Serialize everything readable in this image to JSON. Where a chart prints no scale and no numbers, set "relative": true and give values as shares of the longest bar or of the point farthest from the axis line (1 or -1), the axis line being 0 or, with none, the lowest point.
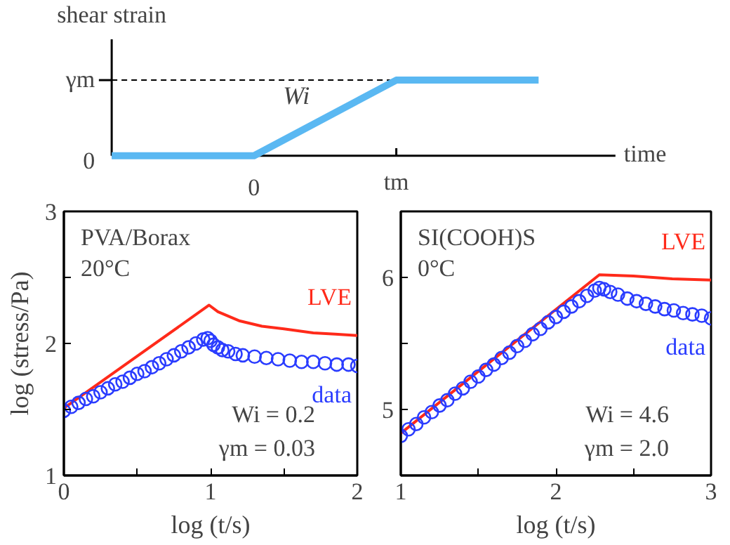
{
  "chart_data": [
    {
      "type": "line",
      "relative": true,
      "xlabel": "time",
      "ylabel": "shear strain",
      "categories": [
        null,
        "0",
        "tm",
        null
      ],
      "series": [
        {
          "color": "#5ab8f2",
          "values": [
            0,
            0,
            1,
            1
          ]
        }
      ],
      "ref_lines": [
        {
          "axis": "y",
          "value": 1,
          "line_style": "dashed",
          "color": "#000000"
        }
      ],
      "annotations": [
        "Wi",
        "0",
        "γm"
      ]
    },
    {
      "type": "line",
      "xlabel": "log (t/s)",
      "ylabel": "log (stress/Pa)",
      "xlim": [
        0,
        2
      ],
      "ylim": [
        1,
        3
      ],
      "xticks": [
        0,
        {
          "value": 0.5,
          "label": null
        },
        1,
        {
          "value": 1.5,
          "label": null
        },
        2
      ],
      "yticks": [
        1,
        {
          "value": 1.5,
          "label": null
        },
        2,
        {
          "value": 2.5,
          "label": null
        },
        3
      ],
      "series": [
        {
          "name": "LVE",
          "type": "line",
          "color": "#ff2a1a",
          "marker": "none",
          "x": [
            0,
            0.99,
            1.05,
            1.2,
            1.35,
            1.5,
            1.7,
            1.85,
            2
          ],
          "values": [
            1.51,
            2.29,
            2.24,
            2.17,
            2.13,
            2.11,
            2.08,
            2.07,
            2.06
          ]
        },
        {
          "name": "data",
          "type": "scatter",
          "color": "#2a3cff",
          "marker": "circle",
          "x": [
            0,
            0.05,
            0.1,
            0.15,
            0.2,
            0.25,
            0.3,
            0.35,
            0.4,
            0.45,
            0.5,
            0.55,
            0.6,
            0.65,
            0.7,
            0.75,
            0.8,
            0.85,
            0.9,
            0.95,
            0.98,
            1.0,
            1.02,
            1.05,
            1.08,
            1.12,
            1.17,
            1.22,
            1.3,
            1.38,
            1.46,
            1.54,
            1.62,
            1.7,
            1.78,
            1.86,
            1.94,
            2.0
          ],
          "values": [
            1.49,
            1.52,
            1.55,
            1.58,
            1.6,
            1.63,
            1.66,
            1.69,
            1.71,
            1.74,
            1.77,
            1.79,
            1.82,
            1.85,
            1.88,
            1.91,
            1.94,
            1.97,
            2.0,
            2.03,
            2.04,
            2.02,
            1.99,
            1.97,
            1.95,
            1.94,
            1.92,
            1.91,
            1.9,
            1.89,
            1.88,
            1.87,
            1.86,
            1.86,
            1.85,
            1.84,
            1.84,
            1.83
          ]
        }
      ],
      "annotations": [
        "PVA/Borax",
        "20°C",
        "Wi = 0.2",
        "γm = 0.03"
      ]
    },
    {
      "type": "line",
      "xlabel": "log (t/s)",
      "xlim": [
        1,
        3
      ],
      "ylim": [
        4.5,
        6.5
      ],
      "xticks": [
        1,
        {
          "value": 1.5,
          "label": null
        },
        2,
        {
          "value": 2.5,
          "label": null
        },
        3
      ],
      "yticks": [
        5,
        {
          "value": 5.5,
          "label": null
        },
        6
      ],
      "series": [
        {
          "name": "LVE",
          "type": "line",
          "color": "#ff2a1a",
          "marker": "none",
          "x": [
            1,
            2.28,
            2.5,
            2.75,
            3
          ],
          "values": [
            4.82,
            6.02,
            6.01,
            5.99,
            5.98
          ]
        },
        {
          "name": "data",
          "type": "scatter",
          "color": "#2a3cff",
          "marker": "circle",
          "x": [
            1,
            1.05,
            1.1,
            1.15,
            1.2,
            1.25,
            1.3,
            1.35,
            1.4,
            1.45,
            1.5,
            1.55,
            1.6,
            1.65,
            1.7,
            1.75,
            1.8,
            1.85,
            1.9,
            1.95,
            2.0,
            2.05,
            2.1,
            2.15,
            2.2,
            2.25,
            2.28,
            2.31,
            2.35,
            2.4,
            2.46,
            2.52,
            2.58,
            2.64,
            2.7,
            2.76,
            2.82,
            2.88,
            2.94,
            3.0
          ],
          "values": [
            4.8,
            4.85,
            4.89,
            4.94,
            4.98,
            5.03,
            5.07,
            5.12,
            5.16,
            5.21,
            5.25,
            5.3,
            5.34,
            5.39,
            5.43,
            5.48,
            5.52,
            5.57,
            5.61,
            5.66,
            5.7,
            5.74,
            5.78,
            5.82,
            5.86,
            5.9,
            5.92,
            5.91,
            5.89,
            5.87,
            5.84,
            5.82,
            5.8,
            5.78,
            5.76,
            5.75,
            5.73,
            5.72,
            5.71,
            5.69
          ]
        }
      ],
      "annotations": [
        "SI(COOH)S",
        "0°C",
        "Wi = 4.6",
        "γm = 2.0"
      ]
    }
  ]
}
